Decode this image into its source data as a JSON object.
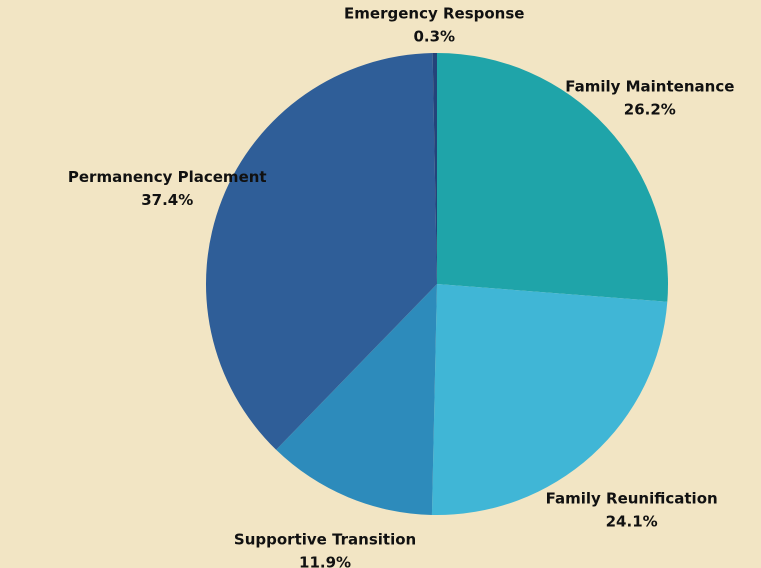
{
  "chart_data": {
    "type": "pie",
    "categories": [
      "Family Maintenance",
      "Family Reunification",
      "Supportive Transition",
      "Permanency Placement",
      "Emergency Response"
    ],
    "values": [
      26.2,
      24.1,
      11.9,
      37.4,
      0.3
    ],
    "value_labels": [
      "26.2%",
      "24.1%",
      "11.9%",
      "37.4%",
      "0.3%"
    ],
    "colors": [
      "#1fa4a9",
      "#40b6d6",
      "#2d8bbb",
      "#2f5e98",
      "#24437a"
    ]
  }
}
